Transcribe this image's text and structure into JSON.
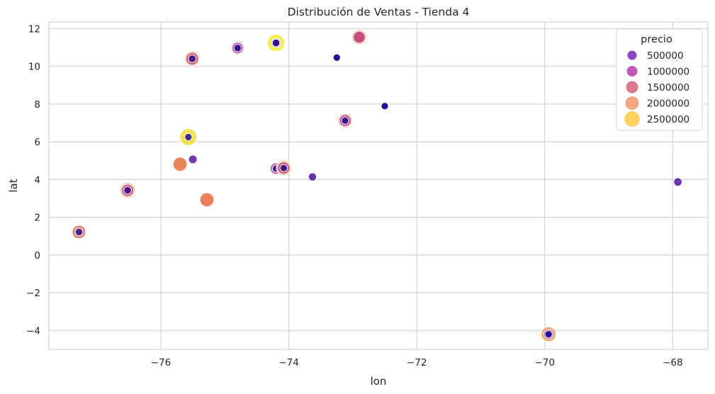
{
  "chart_data": {
    "type": "scatter",
    "title": "Distribución de Ventas - Tienda 4",
    "xlabel": "lon",
    "ylabel": "lat",
    "xlim": [
      -77.75,
      -67.45
    ],
    "ylim": [
      -5,
      12.35
    ],
    "xticks": [
      -76,
      -74,
      -72,
      -70,
      -68
    ],
    "yticks": [
      -4,
      -2,
      0,
      2,
      4,
      6,
      8,
      10,
      12
    ],
    "xtick_labels": [
      "−76",
      "−74",
      "−72",
      "−70",
      "−68"
    ],
    "ytick_labels": [
      "−4",
      "−2",
      "0",
      "2",
      "4",
      "6",
      "8",
      "10",
      "12"
    ],
    "grid": true,
    "colormap": "plasma",
    "hue_variable": "precio",
    "size_variable": "precio",
    "points": [
      {
        "lon": -77.28,
        "lat": 1.22,
        "precio": [
          1700000,
          250000
        ]
      },
      {
        "lon": -76.52,
        "lat": 3.43,
        "precio": [
          2000000,
          1300000,
          250000
        ]
      },
      {
        "lon": -75.7,
        "lat": 4.81,
        "precio": [
          2200000,
          1800000
        ]
      },
      {
        "lon": -75.57,
        "lat": 6.25,
        "precio": [
          2500000,
          200000
        ]
      },
      {
        "lon": -75.51,
        "lat": 10.4,
        "precio": [
          2000000,
          1500000,
          300000
        ]
      },
      {
        "lon": -75.5,
        "lat": 5.07,
        "precio": [
          500000
        ]
      },
      {
        "lon": -75.28,
        "lat": 2.93,
        "precio": [
          2100000,
          1800000
        ]
      },
      {
        "lon": -74.8,
        "lat": 10.97,
        "precio": [
          1500000,
          1000000,
          200000
        ]
      },
      {
        "lon": -74.2,
        "lat": 4.58,
        "precio": [
          1200000,
          200000
        ]
      },
      {
        "lon": -74.2,
        "lat": 11.24,
        "precio": [
          2600000,
          700000,
          250000
        ]
      },
      {
        "lon": -74.08,
        "lat": 4.61,
        "precio": [
          2000000,
          1400000,
          200000
        ]
      },
      {
        "lon": -73.63,
        "lat": 4.14,
        "precio": [
          400000
        ]
      },
      {
        "lon": -73.25,
        "lat": 10.46,
        "precio": [
          400000,
          200000
        ]
      },
      {
        "lon": -73.12,
        "lat": 7.12,
        "precio": [
          1800000,
          1200000,
          200000
        ]
      },
      {
        "lon": -72.9,
        "lat": 11.54,
        "precio": [
          1900000,
          1300000
        ]
      },
      {
        "lon": -72.5,
        "lat": 7.89,
        "precio": [
          450000,
          200000
        ]
      },
      {
        "lon": -69.94,
        "lat": -4.2,
        "precio": [
          2000000,
          800000,
          200000
        ]
      },
      {
        "lon": -67.92,
        "lat": 3.87,
        "precio": [
          450000
        ]
      }
    ],
    "legend": {
      "title": "precio",
      "placement": "top-right",
      "entries": [
        {
          "label": "500000",
          "value": 500000,
          "color": "#8b46c2"
        },
        {
          "label": "1000000",
          "value": 1000000,
          "color": "#bf5ab8"
        },
        {
          "label": "1500000",
          "value": 1500000,
          "color": "#dc7890"
        },
        {
          "label": "2000000",
          "value": 2000000,
          "color": "#f3a684"
        },
        {
          "label": "2500000",
          "value": 2500000,
          "color": "#fdd163"
        }
      ]
    }
  }
}
